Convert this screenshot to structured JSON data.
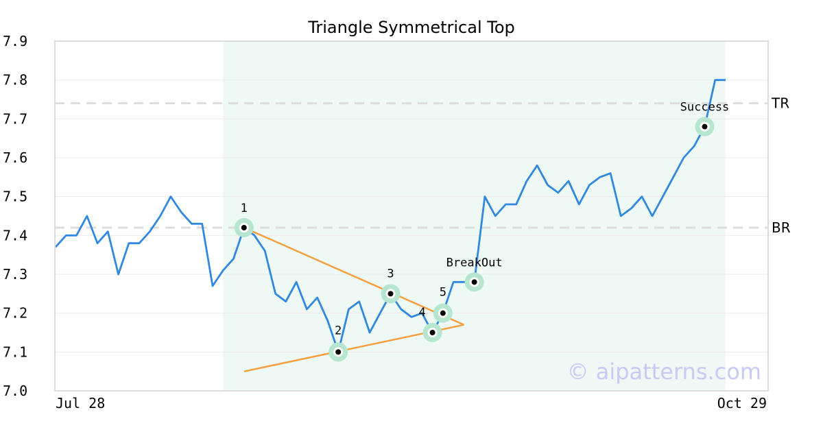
{
  "chart_data": {
    "type": "line",
    "title": "Triangle Symmetrical Top",
    "xlabel": "",
    "ylabel": "",
    "ylim": [
      7.0,
      7.9
    ],
    "yticks": [
      "7.0",
      "7.1",
      "7.2",
      "7.3",
      "7.4",
      "7.5",
      "7.6",
      "7.7",
      "7.8",
      "7.9"
    ],
    "xtick_labels": [
      {
        "index": 0,
        "label": "Jul 28"
      },
      {
        "index": 63,
        "label": "Oct 29"
      }
    ],
    "grid": true,
    "colors": {
      "price": "#3088e0",
      "trendline": "#f5a040",
      "highlight": "#eef8f4",
      "marker_halo": "#b6e6cf",
      "level_line": "#dddddd"
    },
    "series": [
      {
        "values": [
          7.37,
          7.4,
          7.4,
          7.45,
          7.38,
          7.41,
          7.3,
          7.38,
          7.38,
          7.41,
          7.45,
          7.5,
          7.46,
          7.43,
          7.43,
          7.27,
          7.31,
          7.34,
          7.42,
          7.4,
          7.36,
          7.25,
          7.23,
          7.28,
          7.21,
          7.24,
          7.18,
          7.1,
          7.21,
          7.23,
          7.15,
          7.2,
          7.25,
          7.21,
          7.19,
          7.2,
          7.15,
          7.2,
          7.28,
          7.28,
          7.28,
          7.5,
          7.45,
          7.48,
          7.48,
          7.54,
          7.58,
          7.53,
          7.51,
          7.54,
          7.48,
          7.53,
          7.55,
          7.56,
          7.45,
          7.47,
          7.5,
          7.45,
          7.5,
          7.55,
          7.6,
          7.63,
          7.68,
          7.8,
          7.8
        ]
      }
    ],
    "highlight_range": [
      16,
      64
    ],
    "trendlines": [
      {
        "from": [
          18,
          7.42
        ],
        "to": [
          39,
          7.17
        ]
      },
      {
        "from": [
          18,
          7.05
        ],
        "to": [
          39,
          7.17
        ]
      }
    ],
    "levels": [
      {
        "label": "TR",
        "value": 7.74
      },
      {
        "label": "BR",
        "value": 7.42
      }
    ],
    "points": [
      {
        "label": "1",
        "index": 18,
        "value": 7.42
      },
      {
        "label": "2",
        "index": 27,
        "value": 7.1
      },
      {
        "label": "3",
        "index": 32,
        "value": 7.25
      },
      {
        "label": "4",
        "index": 36,
        "value": 7.15
      },
      {
        "label": "5",
        "index": 37,
        "value": 7.2
      },
      {
        "label": "BreakOut",
        "index": 40,
        "value": 7.28
      },
      {
        "label": "Success",
        "index": 62,
        "value": 7.68
      }
    ],
    "watermark": "© aipatterns.com"
  }
}
